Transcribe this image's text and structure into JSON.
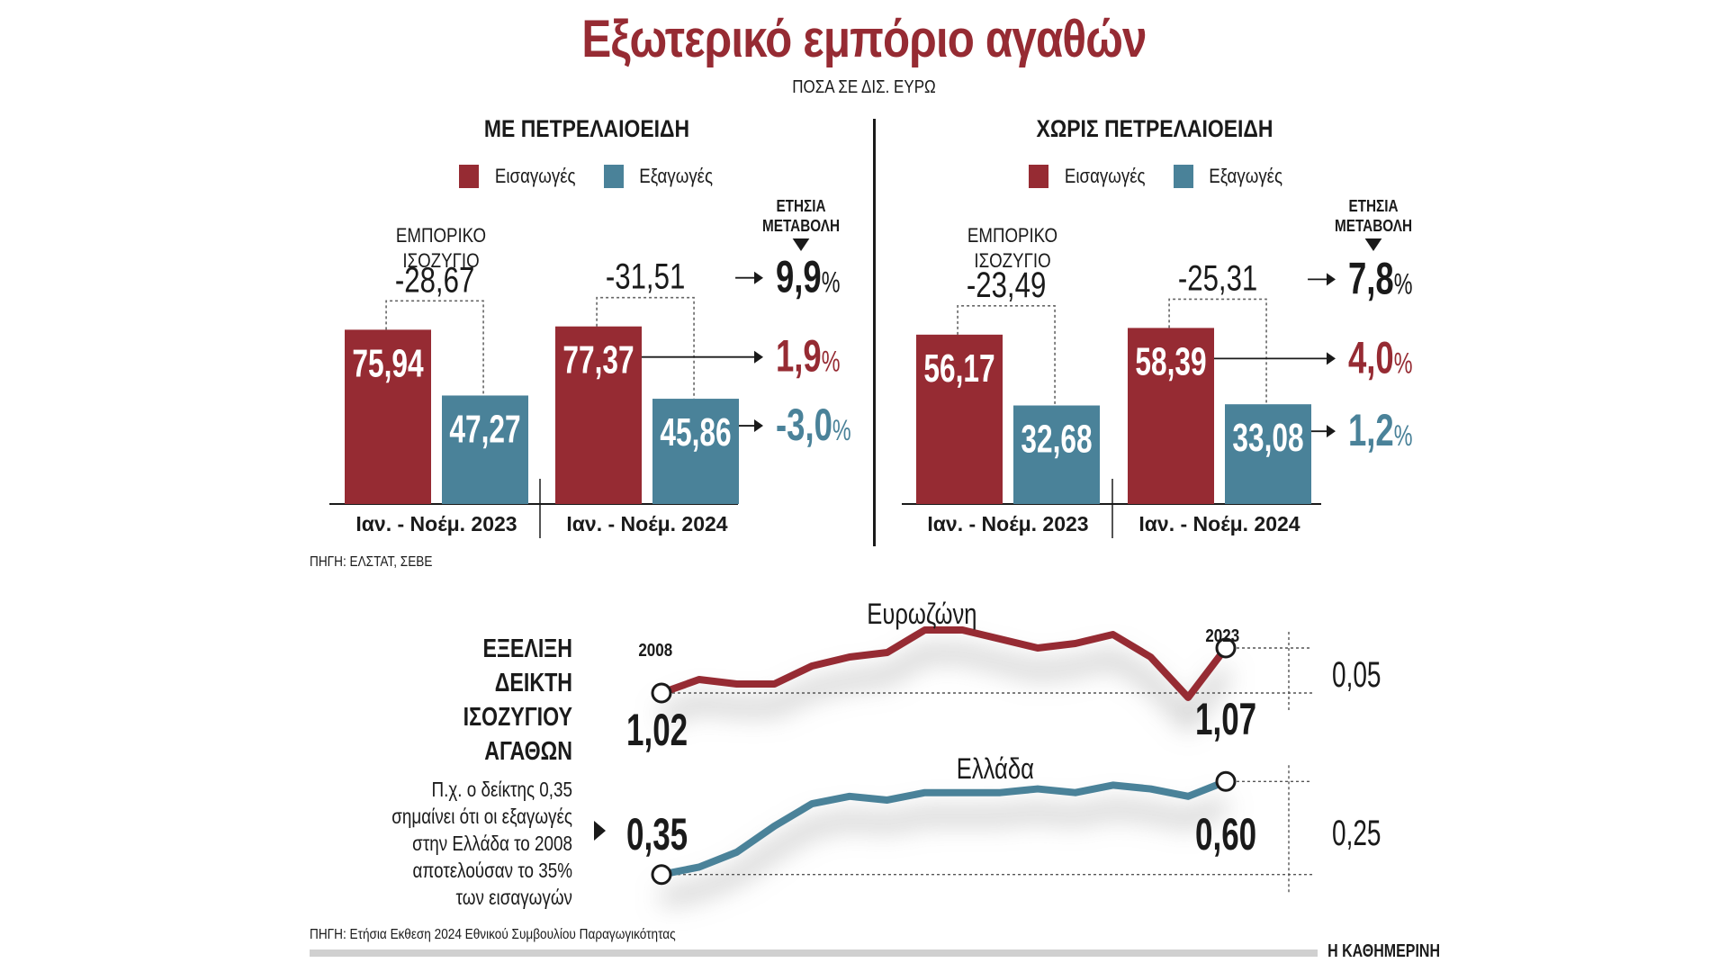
{
  "title": "Εξωτερικό εμπόριο αγαθών",
  "subtitle": "ΠΟΣΑ ΣΕ ΔΙΣ. ΕΥΡΩ",
  "colors": {
    "imports": "#962b33",
    "exports": "#4a8299",
    "text": "#1a1a1a"
  },
  "legend": {
    "imports": "Εισαγωγές",
    "exports": "Εξαγωγές"
  },
  "labels": {
    "balance_heading_line1": "ΕΜΠΟΡΙΚΟ",
    "balance_heading_line2": "ΙΣΟΖΥΓΙΟ",
    "annual_change_line1": "ΕΤΗΣΙΑ",
    "annual_change_line2": "ΜΕΤΑΒΟΛΗ",
    "percent_sign": "%"
  },
  "source_top": "ΠΗΓΗ: ΕΛΣΤΑΤ, ΣΕΒΕ",
  "source_bottom": "ΠΗΓΗ: Ετήσια Εκθεση 2024 Εθνικού Συμβουλίου Παραγωγικότητας",
  "brand": "Η ΚΑΘΗΜΕΡΙΝΗ",
  "index_section": {
    "heading": [
      "ΕΞΕΛΙΞΗ",
      "ΔΕΙΚΤΗ",
      "ΙΣΟΖΥΓΙΟΥ",
      "ΑΓΑΘΩΝ"
    ],
    "note": [
      "Π.χ. ο δείκτης 0,35",
      "σημαίνει ότι οι εξαγωγές",
      "στην Ελλάδα το 2008",
      "αποτελούσαν το 35%",
      "των εισαγωγών"
    ],
    "start_year": "2008",
    "end_year": "2023"
  },
  "chart_data": [
    {
      "type": "bar",
      "title": "ΜΕ ΠΕΤΡΕΛΑΙΟΕΙΔΗ",
      "unit": "δισ. ευρώ",
      "categories": [
        "Ιαν. - Νοέμ. 2023",
        "Ιαν. - Νοέμ. 2024"
      ],
      "series": [
        {
          "name": "Εισαγωγές",
          "values": [
            75.94,
            77.37
          ],
          "labels": [
            "75,94",
            "77,37"
          ]
        },
        {
          "name": "Εξαγωγές",
          "values": [
            47.27,
            45.86
          ],
          "labels": [
            "47,27",
            "45,86"
          ]
        }
      ],
      "trade_balance": {
        "values": [
          -28.67,
          -31.51
        ],
        "labels": [
          "-28,67",
          "-31,51"
        ]
      },
      "annual_change": {
        "balance": {
          "value": 9.9,
          "label": "9,9"
        },
        "imports": {
          "value": 1.9,
          "label": "1,9"
        },
        "exports": {
          "value": -3.0,
          "label": "-3,0"
        }
      },
      "ylim": [
        0,
        80
      ]
    },
    {
      "type": "bar",
      "title": "ΧΩΡΙΣ ΠΕΤΡΕΛΑΙΟΕΙΔΗ",
      "unit": "δισ. ευρώ",
      "categories": [
        "Ιαν. - Νοέμ. 2023",
        "Ιαν. - Νοέμ. 2024"
      ],
      "series": [
        {
          "name": "Εισαγωγές",
          "values": [
            56.17,
            58.39
          ],
          "labels": [
            "56,17",
            "58,39"
          ]
        },
        {
          "name": "Εξαγωγές",
          "values": [
            32.68,
            33.08
          ],
          "labels": [
            "32,68",
            "33,08"
          ]
        }
      ],
      "trade_balance": {
        "values": [
          -23.49,
          -25.31
        ],
        "labels": [
          "-23,49",
          "-25,31"
        ]
      },
      "annual_change": {
        "balance": {
          "value": 7.8,
          "label": "7,8"
        },
        "imports": {
          "value": 4.0,
          "label": "4,0"
        },
        "exports": {
          "value": 1.2,
          "label": "1,2"
        }
      },
      "ylim": [
        0,
        60
      ]
    },
    {
      "type": "line",
      "title": "ΕΞΕΛΙΞΗ ΔΕΙΚΤΗ ΙΣΟΖΥΓΙΟΥ ΑΓΑΘΩΝ",
      "x": [
        2008,
        2009,
        2010,
        2011,
        2012,
        2013,
        2014,
        2015,
        2016,
        2017,
        2018,
        2019,
        2020,
        2021,
        2022,
        2023
      ],
      "series": [
        {
          "name": "Ευρωζώνη",
          "color": "#962b33",
          "values": [
            1.02,
            1.035,
            1.03,
            1.03,
            1.05,
            1.06,
            1.065,
            1.09,
            1.09,
            1.08,
            1.07,
            1.075,
            1.085,
            1.06,
            1.015,
            1.07
          ],
          "start_label": "1,02",
          "end_label": "1,07",
          "change_label": "0,05"
        },
        {
          "name": "Ελλάδα",
          "color": "#4a8299",
          "values": [
            0.35,
            0.37,
            0.41,
            0.48,
            0.54,
            0.56,
            0.55,
            0.57,
            0.57,
            0.57,
            0.58,
            0.57,
            0.59,
            0.58,
            0.56,
            0.6
          ],
          "start_label": "0,35",
          "end_label": "0,60",
          "change_label": "0,25"
        }
      ]
    }
  ]
}
